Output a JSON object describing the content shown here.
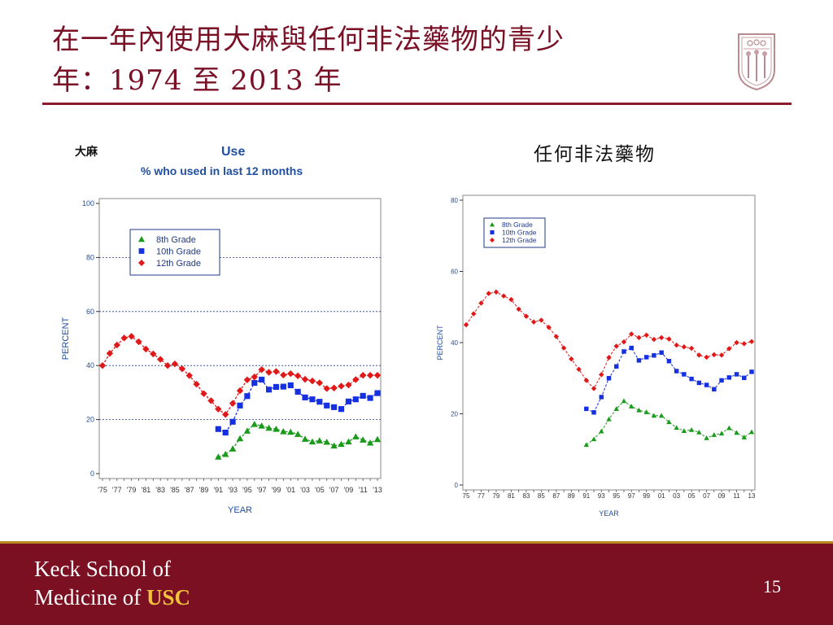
{
  "slide": {
    "title_line1": "在一年內使用大麻與任何非法藥物的青少",
    "title_line2": "年：1974 至 2013 年",
    "page_number": "15",
    "footer_school_line1": "Keck School of",
    "footer_school_line2": "Medicine of",
    "footer_school_usc": "USC"
  },
  "colors": {
    "title": "#7a1026",
    "footer_bg": "#7b1022",
    "footer_accent": "#b8891f",
    "usc_gold": "#f2c23c",
    "grade8": "#1a9a1a",
    "grade10": "#1530e0",
    "grade12": "#e01818",
    "axis_text": "#1f4fa3"
  },
  "chart_data": [
    {
      "type": "line",
      "sub_title": "大麻",
      "title": "Use",
      "subtitle": "% who used in last 12 months",
      "xlabel": "YEAR",
      "ylabel": "PERCENT",
      "ylim": [
        0,
        100
      ],
      "yticks": [
        0,
        20,
        40,
        60,
        80,
        100
      ],
      "xlim": [
        1975,
        2013
      ],
      "xtick_labels": [
        "'75",
        "'77",
        "'79",
        "'81",
        "'83",
        "'85",
        "'87",
        "'89",
        "'91",
        "'93",
        "'95",
        "'97",
        "'99",
        "'01",
        "'03",
        "'05",
        "'07",
        "'09",
        "'11",
        "'13"
      ],
      "grid": true,
      "legend_position": "top-left",
      "series": [
        {
          "name": "8th Grade",
          "marker": "triangle",
          "x": [
            1991,
            1992,
            1993,
            1994,
            1995,
            1996,
            1997,
            1998,
            1999,
            2000,
            2001,
            2002,
            2003,
            2004,
            2005,
            2006,
            2007,
            2008,
            2009,
            2010,
            2011,
            2012,
            2013
          ],
          "values": [
            6.2,
            7.2,
            9.2,
            13.0,
            15.8,
            18.3,
            17.7,
            16.9,
            16.5,
            15.6,
            15.4,
            14.6,
            12.8,
            11.8,
            12.2,
            11.7,
            10.3,
            10.9,
            11.8,
            13.7,
            12.5,
            11.4,
            12.7
          ]
        },
        {
          "name": "10th Grade",
          "marker": "square",
          "x": [
            1991,
            1992,
            1993,
            1994,
            1995,
            1996,
            1997,
            1998,
            1999,
            2000,
            2001,
            2002,
            2003,
            2004,
            2005,
            2006,
            2007,
            2008,
            2009,
            2010,
            2011,
            2012,
            2013
          ],
          "values": [
            16.5,
            15.2,
            19.2,
            25.2,
            28.7,
            33.6,
            34.8,
            31.1,
            32.1,
            32.2,
            32.7,
            30.3,
            28.2,
            27.5,
            26.6,
            25.2,
            24.6,
            23.9,
            26.7,
            27.5,
            28.8,
            28.0,
            29.8
          ]
        },
        {
          "name": "12th Grade",
          "marker": "diamond",
          "x": [
            1975,
            1976,
            1977,
            1978,
            1979,
            1980,
            1981,
            1982,
            1983,
            1984,
            1985,
            1986,
            1987,
            1988,
            1989,
            1990,
            1991,
            1992,
            1993,
            1994,
            1995,
            1996,
            1997,
            1998,
            1999,
            2000,
            2001,
            2002,
            2003,
            2004,
            2005,
            2006,
            2007,
            2008,
            2009,
            2010,
            2011,
            2012,
            2013
          ],
          "values": [
            40.0,
            44.5,
            47.6,
            50.2,
            50.8,
            48.8,
            46.1,
            44.3,
            42.3,
            40.0,
            40.6,
            38.8,
            36.3,
            33.1,
            29.6,
            27.0,
            23.9,
            21.9,
            26.0,
            30.7,
            34.7,
            35.8,
            38.5,
            37.5,
            37.8,
            36.5,
            37.0,
            36.2,
            34.9,
            34.3,
            33.6,
            31.5,
            31.7,
            32.4,
            32.8,
            34.8,
            36.4,
            36.4,
            36.4
          ]
        }
      ]
    },
    {
      "type": "line",
      "sub_title": "任何非法藥物",
      "xlabel": "YEAR",
      "ylabel": "PERCENT",
      "ylim": [
        0,
        80
      ],
      "yticks": [
        0,
        20,
        40,
        60,
        80
      ],
      "xlim": [
        1975,
        2013
      ],
      "xtick_labels": [
        "75",
        "77",
        "79",
        "81",
        "83",
        "85",
        "87",
        "89",
        "91",
        "93",
        "95",
        "97",
        "99",
        "01",
        "03",
        "05",
        "07",
        "09",
        "11",
        "13"
      ],
      "grid": false,
      "legend_position": "top-left",
      "series": [
        {
          "name": "8th Grade",
          "marker": "triangle",
          "x": [
            1991,
            1992,
            1993,
            1994,
            1995,
            1996,
            1997,
            1998,
            1999,
            2000,
            2001,
            2002,
            2003,
            2004,
            2005,
            2006,
            2007,
            2008,
            2009,
            2010,
            2011,
            2012,
            2013
          ],
          "values": [
            11.3,
            12.9,
            15.1,
            18.5,
            21.4,
            23.6,
            22.1,
            21.0,
            20.5,
            19.5,
            19.5,
            17.7,
            16.1,
            15.2,
            15.5,
            14.8,
            13.2,
            14.1,
            14.5,
            16.0,
            14.7,
            13.4,
            14.9
          ]
        },
        {
          "name": "10th Grade",
          "marker": "square",
          "x": [
            1991,
            1992,
            1993,
            1994,
            1995,
            1996,
            1997,
            1998,
            1999,
            2000,
            2001,
            2002,
            2003,
            2004,
            2005,
            2006,
            2007,
            2008,
            2009,
            2010,
            2011,
            2012,
            2013
          ],
          "values": [
            21.4,
            20.4,
            24.7,
            30.0,
            33.3,
            37.5,
            38.5,
            35.0,
            35.9,
            36.4,
            37.2,
            34.8,
            32.0,
            31.1,
            29.8,
            28.7,
            28.1,
            26.9,
            29.4,
            30.2,
            31.1,
            30.1,
            31.8
          ]
        },
        {
          "name": "12th Grade",
          "marker": "diamond",
          "x": [
            1975,
            1976,
            1977,
            1978,
            1979,
            1980,
            1981,
            1982,
            1983,
            1984,
            1985,
            1986,
            1987,
            1988,
            1989,
            1990,
            1991,
            1992,
            1993,
            1994,
            1995,
            1996,
            1997,
            1998,
            1999,
            2000,
            2001,
            2002,
            2003,
            2004,
            2005,
            2006,
            2007,
            2008,
            2009,
            2010,
            2011,
            2012,
            2013
          ],
          "values": [
            45.0,
            48.1,
            51.1,
            53.8,
            54.2,
            53.1,
            52.1,
            49.4,
            47.4,
            45.8,
            46.3,
            44.3,
            41.7,
            38.5,
            35.4,
            32.5,
            29.4,
            27.1,
            31.0,
            35.8,
            39.0,
            40.2,
            42.4,
            41.4,
            42.1,
            40.9,
            41.4,
            41.0,
            39.3,
            38.8,
            38.4,
            36.5,
            35.9,
            36.6,
            36.5,
            38.3,
            40.0,
            39.7,
            40.3
          ]
        }
      ]
    }
  ]
}
